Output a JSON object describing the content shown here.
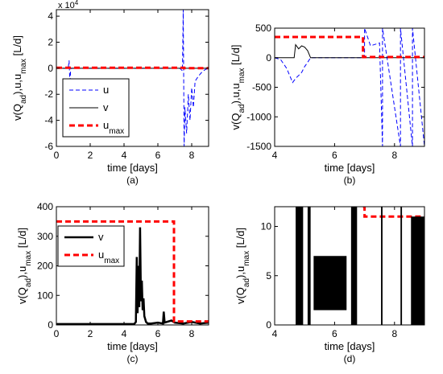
{
  "chart_data": [
    {
      "panel": "a",
      "type": "line",
      "caption": "(a)",
      "xlabel": "time [days]",
      "ylabel": "v(Q_ad),u,u_max [L/d]",
      "exponent_label": "x 10^4",
      "xlim": [
        0,
        9
      ],
      "ylim": [
        -6,
        4.5
      ],
      "xticks": [
        0,
        2,
        4,
        6,
        8
      ],
      "yticks": [
        -6,
        -4,
        -2,
        0,
        2,
        4
      ],
      "legend": {
        "position": "lower-left",
        "entries": [
          "u",
          "v",
          "u_max"
        ]
      },
      "series": [
        {
          "name": "u",
          "style": "dashed",
          "color": "#0000ff",
          "x": [
            0,
            0.7,
            0.75,
            0.8,
            0.85,
            1.0,
            7.3,
            7.45,
            7.5,
            7.55,
            7.6,
            7.7,
            7.8,
            7.9,
            8.0,
            8.1,
            8.2,
            8.4,
            8.6,
            8.8,
            9.0
          ],
          "y": [
            0,
            0,
            0.6,
            -1.2,
            0,
            0,
            0,
            -0.2,
            4.5,
            -6,
            -3,
            -5,
            -2,
            -4,
            -1.5,
            -3,
            -1,
            -0.6,
            -0.3,
            -0.1,
            0
          ]
        },
        {
          "name": "v",
          "style": "solid",
          "color": "#000000",
          "x": [
            0,
            9
          ],
          "y": [
            0,
            0
          ]
        },
        {
          "name": "u_max",
          "style": "dashed",
          "color": "#ff0000",
          "x": [
            0,
            7.55,
            7.55,
            9
          ],
          "y": [
            0.035,
            0.035,
            0.001,
            0.001
          ]
        }
      ]
    },
    {
      "panel": "b",
      "type": "line",
      "caption": "(b)",
      "xlabel": "time [days]",
      "ylabel": "v(Q_ad),u,u_max [L/d]",
      "xlim": [
        4,
        9
      ],
      "ylim": [
        -1500,
        500
      ],
      "xticks": [
        4,
        6,
        8
      ],
      "yticks": [
        -1500,
        -1000,
        -500,
        0,
        500
      ],
      "series": [
        {
          "name": "u",
          "style": "dashed",
          "color": "#0000ff",
          "x": [
            4,
            4.2,
            4.4,
            4.6,
            4.7,
            4.8,
            4.9,
            5.0,
            5.1,
            5.2,
            7.0,
            7.0,
            7.2,
            7.5,
            7.6,
            7.6,
            8.2,
            8.2,
            8.6,
            8.6,
            9.0
          ],
          "y": [
            0,
            -30,
            -180,
            -420,
            -350,
            -300,
            -250,
            -150,
            -80,
            0,
            0,
            500,
            200,
            250,
            -1500,
            500,
            -1500,
            500,
            -1500,
            500,
            -1500
          ]
        },
        {
          "name": "v",
          "style": "solid",
          "color": "#000000",
          "x": [
            4,
            4.65,
            4.7,
            4.8,
            4.9,
            5.0,
            5.1,
            5.2,
            9.0
          ],
          "y": [
            0,
            0,
            220,
            150,
            200,
            180,
            120,
            0,
            0
          ]
        },
        {
          "name": "u_max",
          "style": "dashed",
          "color": "#ff0000",
          "x": [
            4,
            6.95,
            6.95,
            9
          ],
          "y": [
            350,
            350,
            12,
            12
          ]
        }
      ]
    },
    {
      "panel": "c",
      "type": "line",
      "caption": "(c)",
      "xlabel": "time [days]",
      "ylabel": "v(Q_ad),u_max [L/d]",
      "xlim": [
        0,
        9
      ],
      "ylim": [
        0,
        400
      ],
      "xticks": [
        0,
        2,
        4,
        6,
        8
      ],
      "yticks": [
        0,
        100,
        200,
        300,
        400
      ],
      "legend": {
        "position": "upper-left",
        "entries": [
          "v",
          "u_max"
        ]
      },
      "series": [
        {
          "name": "v",
          "style": "solid-thick",
          "color": "#000000",
          "x": [
            0,
            4.6,
            4.7,
            4.75,
            4.8,
            4.85,
            4.9,
            4.95,
            5.0,
            5.05,
            5.1,
            5.15,
            5.2,
            5.3,
            5.4,
            5.6,
            6.0,
            6.3,
            6.35,
            6.4,
            6.8,
            7.0,
            7.5,
            8.0,
            8.5,
            9.0
          ],
          "y": [
            3,
            3,
            10,
            230,
            40,
            200,
            60,
            330,
            80,
            150,
            50,
            90,
            30,
            10,
            5,
            5,
            8,
            5,
            45,
            8,
            15,
            8,
            5,
            10,
            5,
            8
          ]
        },
        {
          "name": "u_max",
          "style": "dashed",
          "color": "#ff0000",
          "x": [
            0,
            6.95,
            6.95,
            9
          ],
          "y": [
            350,
            350,
            12,
            12
          ]
        }
      ]
    },
    {
      "panel": "d",
      "type": "line",
      "caption": "(d)",
      "xlabel": "time [days]",
      "ylabel": "v(Q_ad),u_max [L/d]",
      "xlim": [
        4,
        9
      ],
      "ylim": [
        0,
        12
      ],
      "xticks": [
        4,
        6,
        8
      ],
      "yticks": [
        0,
        5,
        10
      ],
      "series": [
        {
          "name": "u_max",
          "style": "dashed",
          "color": "#ff0000",
          "x": [
            6.95,
            7.0,
            7.0,
            9.0
          ],
          "y": [
            12,
            12,
            11,
            11
          ]
        }
      ]
    }
  ]
}
